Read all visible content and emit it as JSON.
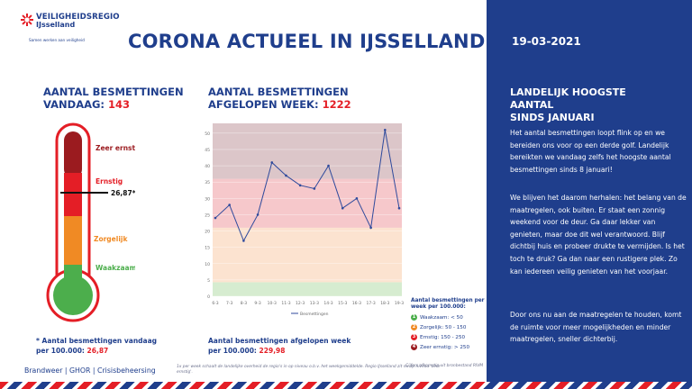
{
  "header": {
    "org_name": "VEILIGHEIDSREGIO",
    "region": "IJsselland",
    "slogan": "Samen werken aan veiligheid",
    "title": "CORONA ACTUEEL IN IJSSELLAND",
    "date": "19-03-2021"
  },
  "today": {
    "heading_line1": "AANTAL BESMETTINGEN",
    "heading_line2": "VANDAAG: ",
    "value": "143",
    "thermometer_marker": "26,87*",
    "thermometer_fill_value": 26.87,
    "levels": [
      "Zeer ernstig",
      "Ernstig",
      "Zorgelijk",
      "Waakzaam"
    ],
    "note_line1": "* Aantal besmettingen vandaag",
    "note_line2": "per 100.000: ",
    "note_value": "26,87"
  },
  "week": {
    "heading_line1": "AANTAL BESMETTINGEN",
    "heading_line2": "AFGELOPEN WEEK: ",
    "value": "1222",
    "note_line1": "Aantal besmettingen afgelopen week",
    "note_line2": "per 100.000: ",
    "note_value": "229,98"
  },
  "chart_data": {
    "type": "line",
    "categories": [
      "6-3",
      "7-3",
      "8-3",
      "9-3",
      "10-3",
      "11-3",
      "12-3",
      "13-3",
      "14-3",
      "15-3",
      "16-3",
      "17-3",
      "18-3",
      "19-3"
    ],
    "series": [
      {
        "name": "Besmettingen",
        "values": [
          24,
          28,
          17,
          25,
          41,
          37,
          34,
          33,
          40,
          27,
          30,
          21,
          51,
          27
        ]
      }
    ],
    "yticks": [
      "0",
      "5",
      "10",
      "15",
      "20",
      "25",
      "30",
      "35",
      "40",
      "45",
      "50"
    ],
    "ylim": [
      0,
      53
    ],
    "bands": [
      {
        "from": 0,
        "to": 4.3,
        "color": "#d6ecd0"
      },
      {
        "from": 4.3,
        "to": 21,
        "color": "#fce3d0"
      },
      {
        "from": 21,
        "to": 36,
        "color": "#f6c8cb"
      },
      {
        "from": 36,
        "to": 53,
        "color": "#dcc6c9"
      }
    ],
    "line_color": "#2f4a9c"
  },
  "legend": {
    "title_line1": "Aantal besmettingen per",
    "title_line2": "week per 100.000:",
    "items": [
      {
        "num": "1",
        "label": "Waakzaam: < 50",
        "color": "#4cae4c"
      },
      {
        "num": "2",
        "label": "Zorgelijk: 50 - 150",
        "color": "#f08a24"
      },
      {
        "num": "3",
        "label": "Ernstig: 150 - 250",
        "color": "#e41e26"
      },
      {
        "num": "4",
        "label": "Zeer ernstig: > 250",
        "color": "#9b1b1f"
      }
    ]
  },
  "sidebar": {
    "heading_line1": "LANDELIJK HOOGSTE AANTAL",
    "heading_line2": "SINDS JANUARI",
    "paragraphs": [
      "Het aantal besmettingen loopt flink op en we bereiden ons voor op een derde golf. Landelijk bereikten we vandaag zelfs het hoogste aantal besmettingen sinds 8 januari!",
      "We blijven het daarom herhalen: het belang van de maatregelen, ook buiten. Er staat een zonnig weekend voor de deur. Ga daar lekker van genieten, maar doe dit wel verantwoord. Blijf dichtbij huis en probeer drukte te vermijden. Is het toch te druk? Ga dan naar een rustigere plek. Zo kan iedereen veilig genieten van het voorjaar.",
      "Door ons nu aan de maatregelen te houden, komt de ruimte voor meer mogelijkheden en minder maatregelen, sneller dichterbij."
    ]
  },
  "footer": {
    "left": "Brandweer | GHOR | Crisisbeheersing",
    "middle": "1x per week schaalt de landelijke overheid de regio's in op niveau o.b.v. het weekgemiddelde. Regio IJsselland zit nu op niveau 'zeer ernstig'.",
    "right": "Cijfers afkomstig uit bronbestand RIVM"
  },
  "colors": {
    "brand_blue": "#1f3e8c",
    "accent_red": "#e41e26",
    "level_zeer_ernstig": "#9b1b1f",
    "level_ernstig": "#e41e26",
    "level_zorgelijk": "#f08a24",
    "level_waakzaam": "#4cae4c"
  }
}
